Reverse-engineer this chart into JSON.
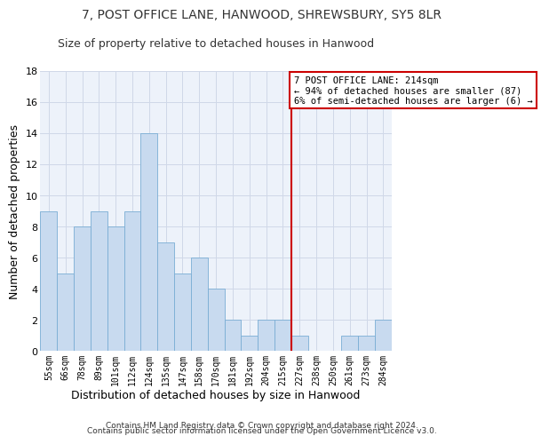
{
  "title": "7, POST OFFICE LANE, HANWOOD, SHREWSBURY, SY5 8LR",
  "subtitle": "Size of property relative to detached houses in Hanwood",
  "xlabel": "Distribution of detached houses by size in Hanwood",
  "ylabel": "Number of detached properties",
  "categories": [
    "55sqm",
    "66sqm",
    "78sqm",
    "89sqm",
    "101sqm",
    "112sqm",
    "124sqm",
    "135sqm",
    "147sqm",
    "158sqm",
    "170sqm",
    "181sqm",
    "192sqm",
    "204sqm",
    "215sqm",
    "227sqm",
    "238sqm",
    "250sqm",
    "261sqm",
    "273sqm",
    "284sqm"
  ],
  "values": [
    9,
    5,
    8,
    9,
    8,
    9,
    14,
    7,
    5,
    6,
    4,
    2,
    1,
    2,
    2,
    1,
    0,
    0,
    1,
    1,
    2
  ],
  "bar_color": "#c8daef",
  "bar_edge_color": "#7aadd4",
  "grid_color": "#d0d8e8",
  "vline_color": "#cc0000",
  "annotation_text": "7 POST OFFICE LANE: 214sqm\n← 94% of detached houses are smaller (87)\n6% of semi-detached houses are larger (6) →",
  "annotation_box_color": "#cc0000",
  "ylim": [
    0,
    18
  ],
  "yticks": [
    0,
    2,
    4,
    6,
    8,
    10,
    12,
    14,
    16,
    18
  ],
  "footer_line1": "Contains HM Land Registry data © Crown copyright and database right 2024.",
  "footer_line2": "Contains public sector information licensed under the Open Government Licence v3.0.",
  "bg_color": "#edf2fa",
  "title_fontsize": 10,
  "subtitle_fontsize": 9,
  "ylabel_fontsize": 9,
  "xlabel_fontsize": 9,
  "tick_fontsize": 7,
  "annotation_fontsize": 7.5,
  "footer_fontsize": 6.5
}
